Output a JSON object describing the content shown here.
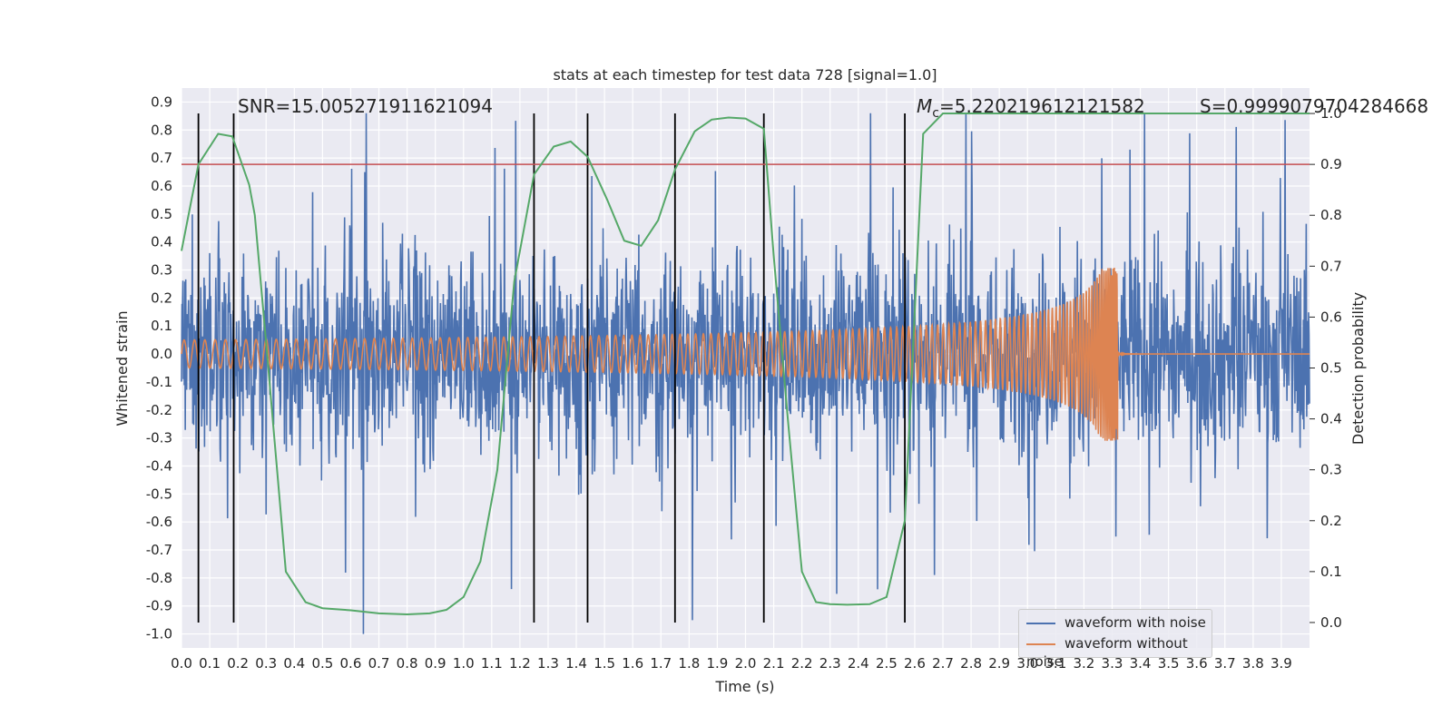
{
  "chart_data": {
    "type": "line",
    "title": "stats at each timestep for test data 728 [signal=1.0]",
    "xlabel": "Time (s)",
    "ylabel": "Whitened strain",
    "y2label": "Detection probability",
    "xlim": [
      0.0,
      4.0
    ],
    "ylim": [
      -1.05,
      0.95
    ],
    "y2lim": [
      -0.05,
      1.05
    ],
    "x_ticks": [
      "0.0",
      "0.1",
      "0.2",
      "0.3",
      "0.4",
      "0.5",
      "0.6",
      "0.7",
      "0.8",
      "0.9",
      "1.0",
      "1.1",
      "1.2",
      "1.3",
      "1.4",
      "1.5",
      "1.6",
      "1.7",
      "1.8",
      "1.9",
      "2.0",
      "2.1",
      "2.2",
      "2.3",
      "2.4",
      "2.5",
      "2.6",
      "2.7",
      "2.8",
      "2.9",
      "3.0",
      "3.1",
      "3.2",
      "3.3",
      "3.4",
      "3.5",
      "3.6",
      "3.7",
      "3.8",
      "3.9"
    ],
    "y_ticks": [
      "0.9",
      "0.8",
      "0.7",
      "0.6",
      "0.5",
      "0.4",
      "0.3",
      "0.2",
      "0.1",
      "0.0",
      "-0.1",
      "-0.2",
      "-0.3",
      "-0.4",
      "-0.5",
      "-0.6",
      "-0.7",
      "-0.8",
      "-0.9",
      "-1.0"
    ],
    "y2_ticks": [
      "1.0",
      "0.9",
      "0.8",
      "0.7",
      "0.6",
      "0.5",
      "0.4",
      "0.3",
      "0.2",
      "0.1",
      "0.0"
    ],
    "annotations": {
      "snr": "SNR=15.005271911621094",
      "mc_symbol": "M",
      "mc_sub": "c",
      "mc_value": "=5.220219612121582",
      "s": "S=0.9999079704284668"
    },
    "threshold_y2": 0.9,
    "detection_times": [
      0.06,
      0.185,
      1.25,
      1.44,
      1.75,
      2.065,
      2.565
    ],
    "series": [
      {
        "name": "waveform with noise",
        "color": "#4c72b0",
        "axis": "left",
        "amplitude": 0.3,
        "t_max": 4.0
      },
      {
        "name": "waveform without noise",
        "color": "#dd8452",
        "axis": "left",
        "start_amplitude": 0.05,
        "peak_amplitude": 0.31,
        "merger_time": 3.32
      },
      {
        "name": "detection probability",
        "color": "#55a868",
        "axis": "right",
        "x": [
          0.0,
          0.06,
          0.13,
          0.18,
          0.24,
          0.26,
          0.3,
          0.37,
          0.44,
          0.5,
          0.6,
          0.7,
          0.8,
          0.88,
          0.94,
          1.0,
          1.06,
          1.12,
          1.18,
          1.25,
          1.32,
          1.38,
          1.44,
          1.51,
          1.57,
          1.63,
          1.69,
          1.75,
          1.82,
          1.88,
          1.94,
          2.0,
          2.065,
          2.1,
          2.15,
          2.2,
          2.25,
          2.3,
          2.36,
          2.44,
          2.5,
          2.565,
          2.63,
          2.7,
          3.0,
          3.5,
          4.0
        ],
        "y": [
          0.73,
          0.9,
          0.96,
          0.955,
          0.86,
          0.8,
          0.55,
          0.1,
          0.04,
          0.028,
          0.024,
          0.018,
          0.016,
          0.018,
          0.025,
          0.05,
          0.12,
          0.3,
          0.67,
          0.88,
          0.935,
          0.945,
          0.915,
          0.83,
          0.75,
          0.74,
          0.79,
          0.89,
          0.965,
          0.988,
          0.992,
          0.99,
          0.97,
          0.72,
          0.4,
          0.1,
          0.04,
          0.036,
          0.035,
          0.036,
          0.05,
          0.2,
          0.96,
          1.0,
          1.0,
          1.0,
          1.0
        ]
      },
      {
        "name": "threshold",
        "color": "#c44e52",
        "axis": "right",
        "value": 0.9
      }
    ]
  },
  "legend": {
    "noise_label": "waveform with noise",
    "clean_label": "waveform without noise",
    "noise_color": "#4c72b0",
    "clean_color": "#dd8452"
  }
}
